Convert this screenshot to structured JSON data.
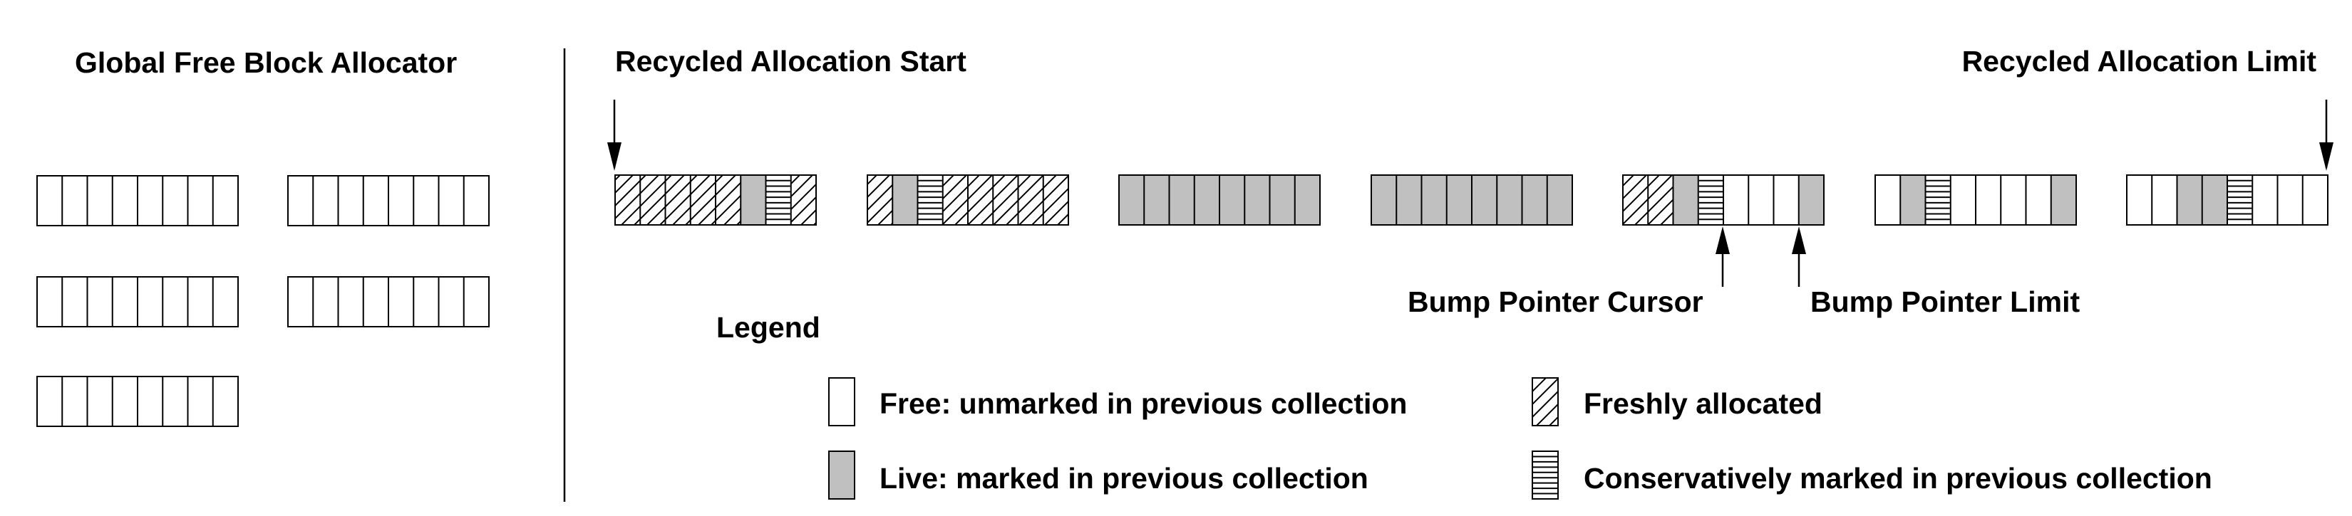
{
  "figure": {
    "left_panel": {
      "title": "Global Free Block Allocator",
      "blocks": [
        {
          "cells": [
            "free",
            "free",
            "free",
            "free",
            "free",
            "free",
            "free",
            "free"
          ]
        },
        {
          "cells": [
            "free",
            "free",
            "free",
            "free",
            "free",
            "free",
            "free",
            "free"
          ]
        },
        {
          "cells": [
            "free",
            "free",
            "free",
            "free",
            "free",
            "free",
            "free",
            "free"
          ]
        },
        {
          "cells": [
            "free",
            "free",
            "free",
            "free",
            "free",
            "free",
            "free",
            "free"
          ]
        },
        {
          "cells": [
            "free",
            "free",
            "free",
            "free",
            "free",
            "free",
            "free",
            "free"
          ]
        }
      ]
    },
    "right_panel": {
      "start_label": "Recycled Allocation Start",
      "limit_label": "Recycled Allocation Limit",
      "cursor_label": "Bump Pointer Cursor",
      "cursor_limit_label": "Bump Pointer Limit",
      "blocks": [
        {
          "cells": [
            "fresh",
            "fresh",
            "fresh",
            "fresh",
            "fresh",
            "live",
            "conservative",
            "fresh"
          ]
        },
        {
          "cells": [
            "fresh",
            "live",
            "conservative",
            "fresh",
            "fresh",
            "fresh",
            "fresh",
            "fresh"
          ]
        },
        {
          "cells": [
            "live",
            "live",
            "live",
            "live",
            "live",
            "live",
            "live",
            "live"
          ]
        },
        {
          "cells": [
            "live",
            "live",
            "live",
            "live",
            "live",
            "live",
            "live",
            "live"
          ]
        },
        {
          "cells": [
            "fresh",
            "fresh",
            "live",
            "conservative",
            "free",
            "free",
            "free",
            "live"
          ]
        },
        {
          "cells": [
            "free",
            "live",
            "conservative",
            "free",
            "free",
            "free",
            "free",
            "live"
          ]
        },
        {
          "cells": [
            "free",
            "free",
            "live",
            "live",
            "conservative",
            "free",
            "free",
            "free"
          ]
        }
      ]
    },
    "legend": {
      "title": "Legend",
      "items": [
        {
          "kind": "free",
          "label": "Free: unmarked in previous collection"
        },
        {
          "kind": "fresh",
          "label": "Freshly allocated"
        },
        {
          "kind": "live",
          "label": "Live: marked in previous collection"
        },
        {
          "kind": "conservative",
          "label": "Conservatively marked in previous collection"
        }
      ]
    },
    "colors": {
      "line": "#000000",
      "live": "#c0c0c0",
      "free": "#ffffff"
    }
  }
}
